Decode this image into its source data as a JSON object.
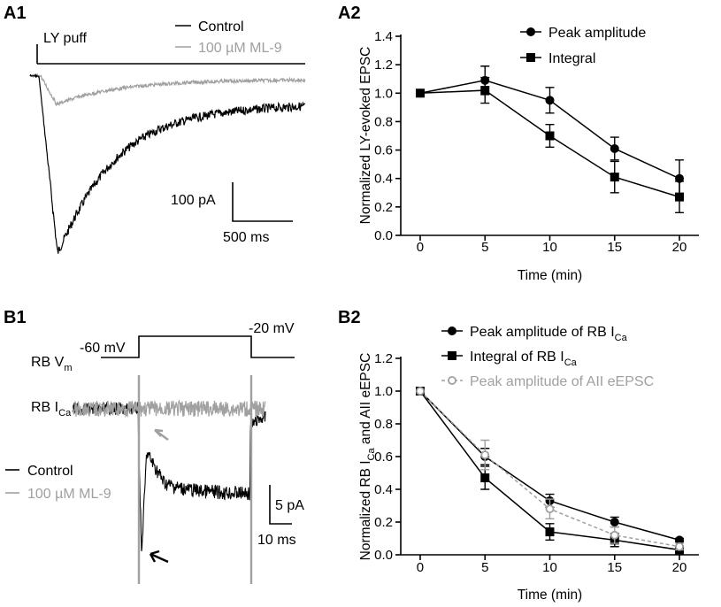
{
  "figure": {
    "panels": {
      "a1": "A1",
      "a2": "A2",
      "b1": "B1",
      "b2": "B2"
    },
    "colors": {
      "control": "#000000",
      "ml9": "#a0a0a0"
    },
    "a1": {
      "puff_label": "LY puff",
      "legend": [
        "Control",
        "100 µM ML-9"
      ],
      "scale_y": "100 pA",
      "scale_x": "500 ms"
    },
    "b1": {
      "vm_label_main": "RB V",
      "vm_label_sub": "m",
      "v_hold": "-60 mV",
      "v_step": "-20 mV",
      "ica_label_main": "RB I",
      "ica_label_sub": "Ca",
      "legend": [
        "Control",
        "100 µM ML-9"
      ],
      "scale_y": "5 pA",
      "scale_x": "10 ms"
    }
  },
  "chart_data": [
    {
      "id": "A2",
      "type": "line",
      "title": "",
      "xlabel": "Time (min)",
      "ylabel": "Normalized LY-evoked EPSC",
      "x": [
        0,
        5,
        10,
        15,
        20
      ],
      "xticks": [
        "0",
        "5",
        "10",
        "15",
        "20"
      ],
      "xlim": [
        -1.5,
        21.5
      ],
      "ylim": [
        0,
        1.4
      ],
      "yticks": [
        "0.0",
        "0.2",
        "0.4",
        "0.6",
        "0.8",
        "1.0",
        "1.2",
        "1.4"
      ],
      "legend_position": "top-right",
      "series": [
        {
          "name": "Peak amplitude",
          "marker": "circle",
          "color": "#000000",
          "dashed": false,
          "values": [
            1.0,
            1.09,
            0.95,
            0.61,
            0.4
          ],
          "errors": [
            0,
            0.1,
            0.09,
            0.08,
            0.13
          ]
        },
        {
          "name": "Integral",
          "marker": "square",
          "color": "#000000",
          "dashed": false,
          "values": [
            1.0,
            1.02,
            0.7,
            0.41,
            0.27
          ],
          "errors": [
            0,
            0.09,
            0.08,
            0.11,
            0.11
          ]
        }
      ]
    },
    {
      "id": "B2",
      "type": "line",
      "title": "",
      "xlabel": "Time (min)",
      "ylabel": "Normalized RB I",
      "ylabel_sub": "Ca",
      "ylabel_tail": " and AII eEPSC",
      "x": [
        0,
        5,
        10,
        15,
        20
      ],
      "xticks": [
        "0",
        "5",
        "10",
        "15",
        "20"
      ],
      "xlim": [
        -1.5,
        21.5
      ],
      "ylim": [
        0,
        1.2
      ],
      "yticks": [
        "0.0",
        "0.2",
        "0.4",
        "0.6",
        "0.8",
        "1.0",
        "1.2"
      ],
      "legend_position": "top-right",
      "series": [
        {
          "name": "Peak amplitude of RB I",
          "name_sub": "Ca",
          "marker": "circle",
          "color": "#000000",
          "dashed": false,
          "values": [
            1.0,
            0.6,
            0.33,
            0.2,
            0.09
          ],
          "errors": [
            0,
            0.05,
            0.04,
            0.03,
            0.01
          ]
        },
        {
          "name": "Integral of RB I",
          "name_sub": "Ca",
          "marker": "square",
          "color": "#000000",
          "dashed": false,
          "values": [
            1.0,
            0.47,
            0.14,
            0.09,
            0.03
          ],
          "errors": [
            0,
            0.07,
            0.05,
            0.04,
            0.01
          ]
        },
        {
          "name": "Peak amplitude of AII eEPSC",
          "marker": "open-circle",
          "color": "#a0a0a0",
          "dashed": true,
          "values": [
            1.0,
            0.61,
            0.28,
            0.12,
            0.05
          ],
          "errors": [
            0,
            0.09,
            0.06,
            0.05,
            0.02
          ]
        }
      ]
    }
  ]
}
